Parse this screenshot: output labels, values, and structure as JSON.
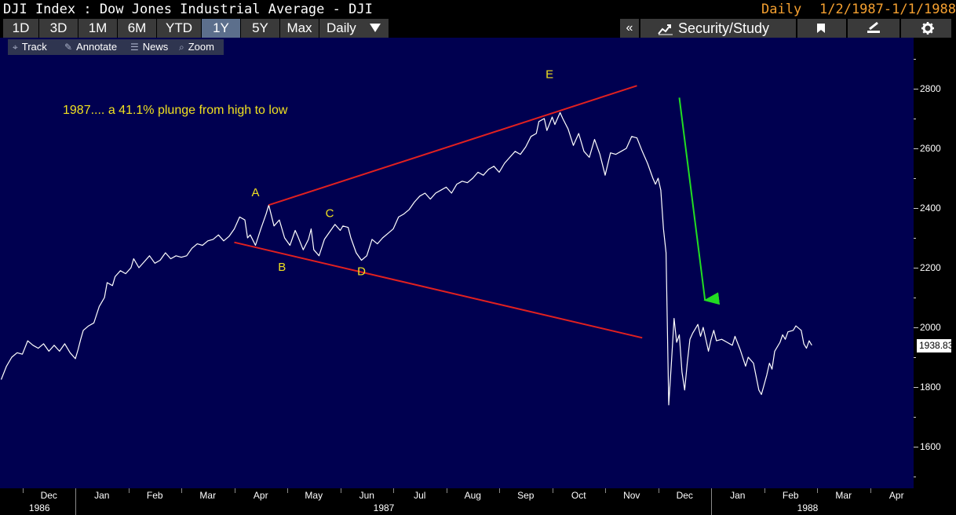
{
  "header": {
    "title": "DJI Index : Dow Jones Industrial Average - DJI",
    "frequency": "Daily",
    "date_range": "1/2/1987-1/1/1988"
  },
  "toolbar": {
    "periods": [
      "1D",
      "3D",
      "1M",
      "6M",
      "YTD",
      "1Y",
      "5Y",
      "Max"
    ],
    "active_period": "1Y",
    "frequency_dropdown": "Daily",
    "collapse_glyph": "«",
    "security_study": "Security/Study"
  },
  "minibar": {
    "items": [
      {
        "label": "Track",
        "icon": "crosshair-icon",
        "glyph": "⌖"
      },
      {
        "label": "Annotate",
        "icon": "pencil-icon",
        "glyph": "✎"
      },
      {
        "label": "News",
        "icon": "news-icon",
        "glyph": "☰"
      },
      {
        "label": "Zoom",
        "icon": "magnifier-icon",
        "glyph": "⌕"
      }
    ]
  },
  "chart_data": {
    "type": "line",
    "title": "",
    "annotation": "1987.... a 41.1% plunge from high to low",
    "y_ticks": [
      1600,
      1800,
      2000,
      2200,
      2400,
      2600,
      2800
    ],
    "ylim": [
      1470,
      2960
    ],
    "last_value_label": "1938.83",
    "x_month_labels": [
      {
        "label": "Dec",
        "m": -0.5
      },
      {
        "label": "Jan",
        "m": 0.5
      },
      {
        "label": "Feb",
        "m": 1.5
      },
      {
        "label": "Mar",
        "m": 2.5
      },
      {
        "label": "Apr",
        "m": 3.5
      },
      {
        "label": "May",
        "m": 4.5
      },
      {
        "label": "Jun",
        "m": 5.5
      },
      {
        "label": "Jul",
        "m": 6.5
      },
      {
        "label": "Aug",
        "m": 7.5
      },
      {
        "label": "Sep",
        "m": 8.5
      },
      {
        "label": "Oct",
        "m": 9.5
      },
      {
        "label": "Nov",
        "m": 10.5
      },
      {
        "label": "Dec",
        "m": 11.5
      },
      {
        "label": "Jan",
        "m": 12.5
      },
      {
        "label": "Feb",
        "m": 13.5
      },
      {
        "label": "Mar",
        "m": 14.5
      },
      {
        "label": "Apr",
        "m": 15.5
      }
    ],
    "x_year_labels": [
      {
        "label": "1986",
        "m": -0.5
      },
      {
        "label": "1987",
        "m": 6
      },
      {
        "label": "1988",
        "m": 14
      }
    ],
    "series": [
      {
        "color": "#ffffff",
        "points": [
          [
            -1.4,
            1825
          ],
          [
            -1.3,
            1870
          ],
          [
            -1.2,
            1900
          ],
          [
            -1.1,
            1915
          ],
          [
            -1.0,
            1910
          ],
          [
            -0.9,
            1955
          ],
          [
            -0.8,
            1940
          ],
          [
            -0.7,
            1930
          ],
          [
            -0.6,
            1945
          ],
          [
            -0.5,
            1920
          ],
          [
            -0.4,
            1940
          ],
          [
            -0.3,
            1920
          ],
          [
            -0.2,
            1945
          ],
          [
            -0.1,
            1915
          ],
          [
            0.0,
            1895
          ],
          [
            0.05,
            1925
          ],
          [
            0.1,
            1960
          ],
          [
            0.15,
            1990
          ],
          [
            0.25,
            2005
          ],
          [
            0.35,
            2015
          ],
          [
            0.45,
            2070
          ],
          [
            0.55,
            2100
          ],
          [
            0.6,
            2150
          ],
          [
            0.7,
            2140
          ],
          [
            0.75,
            2170
          ],
          [
            0.85,
            2190
          ],
          [
            0.95,
            2180
          ],
          [
            1.05,
            2200
          ],
          [
            1.1,
            2230
          ],
          [
            1.2,
            2200
          ],
          [
            1.3,
            2220
          ],
          [
            1.4,
            2240
          ],
          [
            1.5,
            2215
          ],
          [
            1.6,
            2225
          ],
          [
            1.7,
            2250
          ],
          [
            1.8,
            2230
          ],
          [
            1.9,
            2240
          ],
          [
            2.0,
            2235
          ],
          [
            2.1,
            2240
          ],
          [
            2.2,
            2265
          ],
          [
            2.3,
            2280
          ],
          [
            2.4,
            2275
          ],
          [
            2.5,
            2290
          ],
          [
            2.6,
            2295
          ],
          [
            2.7,
            2310
          ],
          [
            2.8,
            2290
          ],
          [
            2.9,
            2305
          ],
          [
            3.0,
            2330
          ],
          [
            3.1,
            2370
          ],
          [
            3.2,
            2360
          ],
          [
            3.25,
            2300
          ],
          [
            3.3,
            2310
          ],
          [
            3.4,
            2275
          ],
          [
            3.5,
            2330
          ],
          [
            3.6,
            2380
          ],
          [
            3.65,
            2410
          ],
          [
            3.75,
            2340
          ],
          [
            3.85,
            2360
          ],
          [
            3.95,
            2300
          ],
          [
            4.05,
            2275
          ],
          [
            4.15,
            2325
          ],
          [
            4.2,
            2305
          ],
          [
            4.3,
            2260
          ],
          [
            4.4,
            2295
          ],
          [
            4.45,
            2330
          ],
          [
            4.5,
            2260
          ],
          [
            4.6,
            2240
          ],
          [
            4.7,
            2295
          ],
          [
            4.8,
            2320
          ],
          [
            4.9,
            2345
          ],
          [
            5.0,
            2325
          ],
          [
            5.05,
            2340
          ],
          [
            5.15,
            2335
          ],
          [
            5.2,
            2300
          ],
          [
            5.3,
            2250
          ],
          [
            5.4,
            2225
          ],
          [
            5.5,
            2240
          ],
          [
            5.6,
            2295
          ],
          [
            5.7,
            2280
          ],
          [
            5.8,
            2300
          ],
          [
            5.9,
            2315
          ],
          [
            6.0,
            2330
          ],
          [
            6.1,
            2370
          ],
          [
            6.2,
            2380
          ],
          [
            6.3,
            2395
          ],
          [
            6.4,
            2420
          ],
          [
            6.5,
            2440
          ],
          [
            6.6,
            2450
          ],
          [
            6.7,
            2430
          ],
          [
            6.8,
            2450
          ],
          [
            6.9,
            2460
          ],
          [
            7.0,
            2470
          ],
          [
            7.1,
            2450
          ],
          [
            7.2,
            2480
          ],
          [
            7.3,
            2490
          ],
          [
            7.4,
            2485
          ],
          [
            7.5,
            2500
          ],
          [
            7.6,
            2520
          ],
          [
            7.7,
            2510
          ],
          [
            7.8,
            2530
          ],
          [
            7.9,
            2540
          ],
          [
            8.0,
            2520
          ],
          [
            8.1,
            2550
          ],
          [
            8.2,
            2570
          ],
          [
            8.3,
            2590
          ],
          [
            8.4,
            2580
          ],
          [
            8.5,
            2605
          ],
          [
            8.6,
            2640
          ],
          [
            8.7,
            2650
          ],
          [
            8.75,
            2690
          ],
          [
            8.85,
            2700
          ],
          [
            8.9,
            2660
          ],
          [
            9.0,
            2705
          ],
          [
            9.05,
            2680
          ],
          [
            9.15,
            2720
          ],
          [
            9.2,
            2700
          ],
          [
            9.3,
            2665
          ],
          [
            9.4,
            2610
          ],
          [
            9.5,
            2650
          ],
          [
            9.6,
            2590
          ],
          [
            9.7,
            2570
          ],
          [
            9.8,
            2630
          ],
          [
            9.9,
            2580
          ],
          [
            10.0,
            2510
          ],
          [
            10.1,
            2585
          ],
          [
            10.2,
            2580
          ],
          [
            10.3,
            2590
          ],
          [
            10.4,
            2600
          ],
          [
            10.5,
            2640
          ],
          [
            10.6,
            2635
          ],
          [
            10.7,
            2590
          ],
          [
            10.8,
            2550
          ],
          [
            10.9,
            2500
          ],
          [
            10.95,
            2480
          ],
          [
            11.0,
            2500
          ],
          [
            11.05,
            2460
          ],
          [
            11.1,
            2330
          ],
          [
            11.15,
            2250
          ],
          [
            11.2,
            1740
          ],
          [
            11.25,
            1880
          ],
          [
            11.3,
            2030
          ],
          [
            11.35,
            1950
          ],
          [
            11.4,
            1975
          ],
          [
            11.45,
            1850
          ],
          [
            11.5,
            1790
          ],
          [
            11.55,
            1880
          ],
          [
            11.6,
            1960
          ],
          [
            11.65,
            1980
          ],
          [
            11.7,
            1995
          ],
          [
            11.75,
            2010
          ],
          [
            11.8,
            1970
          ],
          [
            11.85,
            2000
          ],
          [
            11.9,
            1960
          ],
          [
            11.95,
            1920
          ],
          [
            12.0,
            1960
          ],
          [
            12.05,
            1990
          ],
          [
            12.1,
            1955
          ],
          [
            12.2,
            1960
          ],
          [
            12.3,
            1950
          ],
          [
            12.4,
            1940
          ],
          [
            12.45,
            1970
          ],
          [
            12.55,
            1925
          ],
          [
            12.65,
            1870
          ],
          [
            12.7,
            1900
          ],
          [
            12.8,
            1880
          ],
          [
            12.85,
            1835
          ],
          [
            12.9,
            1790
          ],
          [
            12.95,
            1775
          ],
          [
            13.05,
            1840
          ],
          [
            13.1,
            1880
          ],
          [
            13.15,
            1860
          ],
          [
            13.2,
            1920
          ],
          [
            13.3,
            1950
          ],
          [
            13.35,
            1975
          ],
          [
            13.4,
            1960
          ],
          [
            13.45,
            1985
          ],
          [
            13.55,
            1990
          ],
          [
            13.6,
            2005
          ],
          [
            13.7,
            1990
          ],
          [
            13.75,
            1945
          ],
          [
            13.8,
            1930
          ],
          [
            13.85,
            1955
          ],
          [
            13.9,
            1940
          ]
        ]
      }
    ],
    "trendlines": [
      {
        "color": "#e02020",
        "from": [
          3.65,
          2410
        ],
        "to": [
          10.6,
          2810
        ]
      },
      {
        "color": "#e02020",
        "from": [
          3.0,
          2285
        ],
        "to": [
          10.7,
          1965
        ]
      },
      {
        "color": "#22dd22",
        "from": [
          11.4,
          2770
        ],
        "to": [
          11.9,
          2070
        ],
        "arrow": true
      }
    ],
    "point_labels": [
      {
        "text": "A",
        "m": 3.4,
        "y": 2440
      },
      {
        "text": "B",
        "m": 3.9,
        "y": 2190
      },
      {
        "text": "C",
        "m": 4.8,
        "y": 2370
      },
      {
        "text": "D",
        "m": 5.4,
        "y": 2175
      },
      {
        "text": "E",
        "m": 8.95,
        "y": 2835
      }
    ]
  }
}
